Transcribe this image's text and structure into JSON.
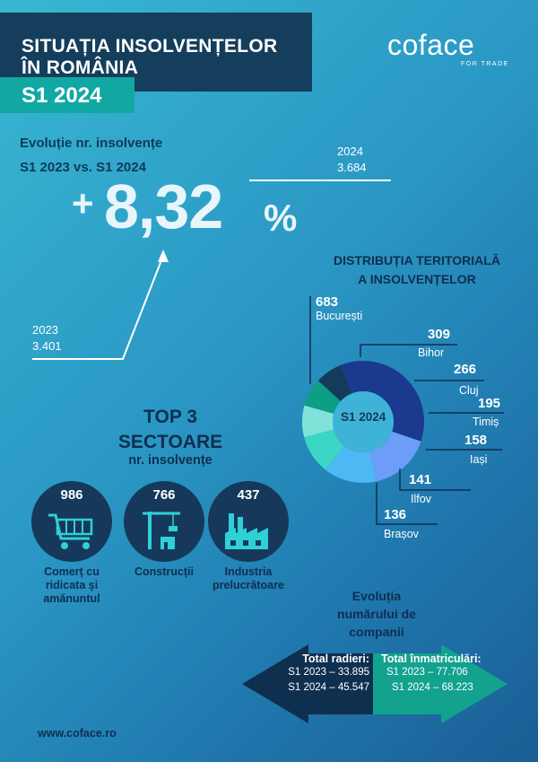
{
  "header": {
    "title_line1": "SITUAȚIA INSOLVENȚELOR",
    "title_line2": "ÎN ROMÂNIA",
    "period": "S1 2024"
  },
  "logo": {
    "name": "coface",
    "tagline": "FOR TRADE"
  },
  "evolution": {
    "label_line1": "Evoluție nr. insolvențe",
    "label_line2": "S1 2023 vs. S1 2024",
    "plus": "+",
    "value": "8,32",
    "percent": "%",
    "year_2023": "2023",
    "value_2023": "3.401",
    "year_2024": "2024",
    "value_2024": "3.684"
  },
  "distribution": {
    "title_line1": "DISTRIBUȚIA TERITORIALĂ",
    "title_line2": "A INSOLVENȚELOR",
    "center_label": "S1 2024",
    "regions": [
      {
        "value": "683",
        "name": "București",
        "color": "#1b3a8f"
      },
      {
        "value": "309",
        "name": "Bihor",
        "color": "#6d9ef7"
      },
      {
        "value": "266",
        "name": "Cluj",
        "color": "#4cb8f4"
      },
      {
        "value": "195",
        "name": "Timiș",
        "color": "#3bd6c4"
      },
      {
        "value": "158",
        "name": "Iași",
        "color": "#7fe3d9"
      },
      {
        "value": "141",
        "name": "Ilfov",
        "color": "#0d9e86"
      },
      {
        "value": "136",
        "name": "Brașov",
        "color": "#153a5b"
      }
    ]
  },
  "top3": {
    "title_line1": "TOP 3",
    "title_line2": "SECTOARE",
    "subtitle": "nr. insolvențe",
    "sectors": [
      {
        "value": "986",
        "label_line1": "Comerț cu",
        "label_line2": "ridicata și",
        "label_line3": "amănuntul",
        "icon": "shopping-cart-icon"
      },
      {
        "value": "766",
        "label_line1": "Construcții",
        "icon": "construction-crane-icon"
      },
      {
        "value": "437",
        "label_line1": "Industria",
        "label_line2": "prelucrătoare",
        "icon": "factory-icon"
      }
    ]
  },
  "companies": {
    "title_line1": "Evoluția",
    "title_line2": "numărului de",
    "title_line3": "companii",
    "removals_title": "Total radieri:",
    "removals_2023": "S1 2023 – 33.895",
    "removals_2024": "S1 2024 – 45.547",
    "registrations_title": "Total înmatriculări:",
    "registrations_2023": "S1 2023 – 77.706",
    "registrations_2024": "S1 2024 – 68.223"
  },
  "footer": {
    "website": "www.coface.ro"
  }
}
